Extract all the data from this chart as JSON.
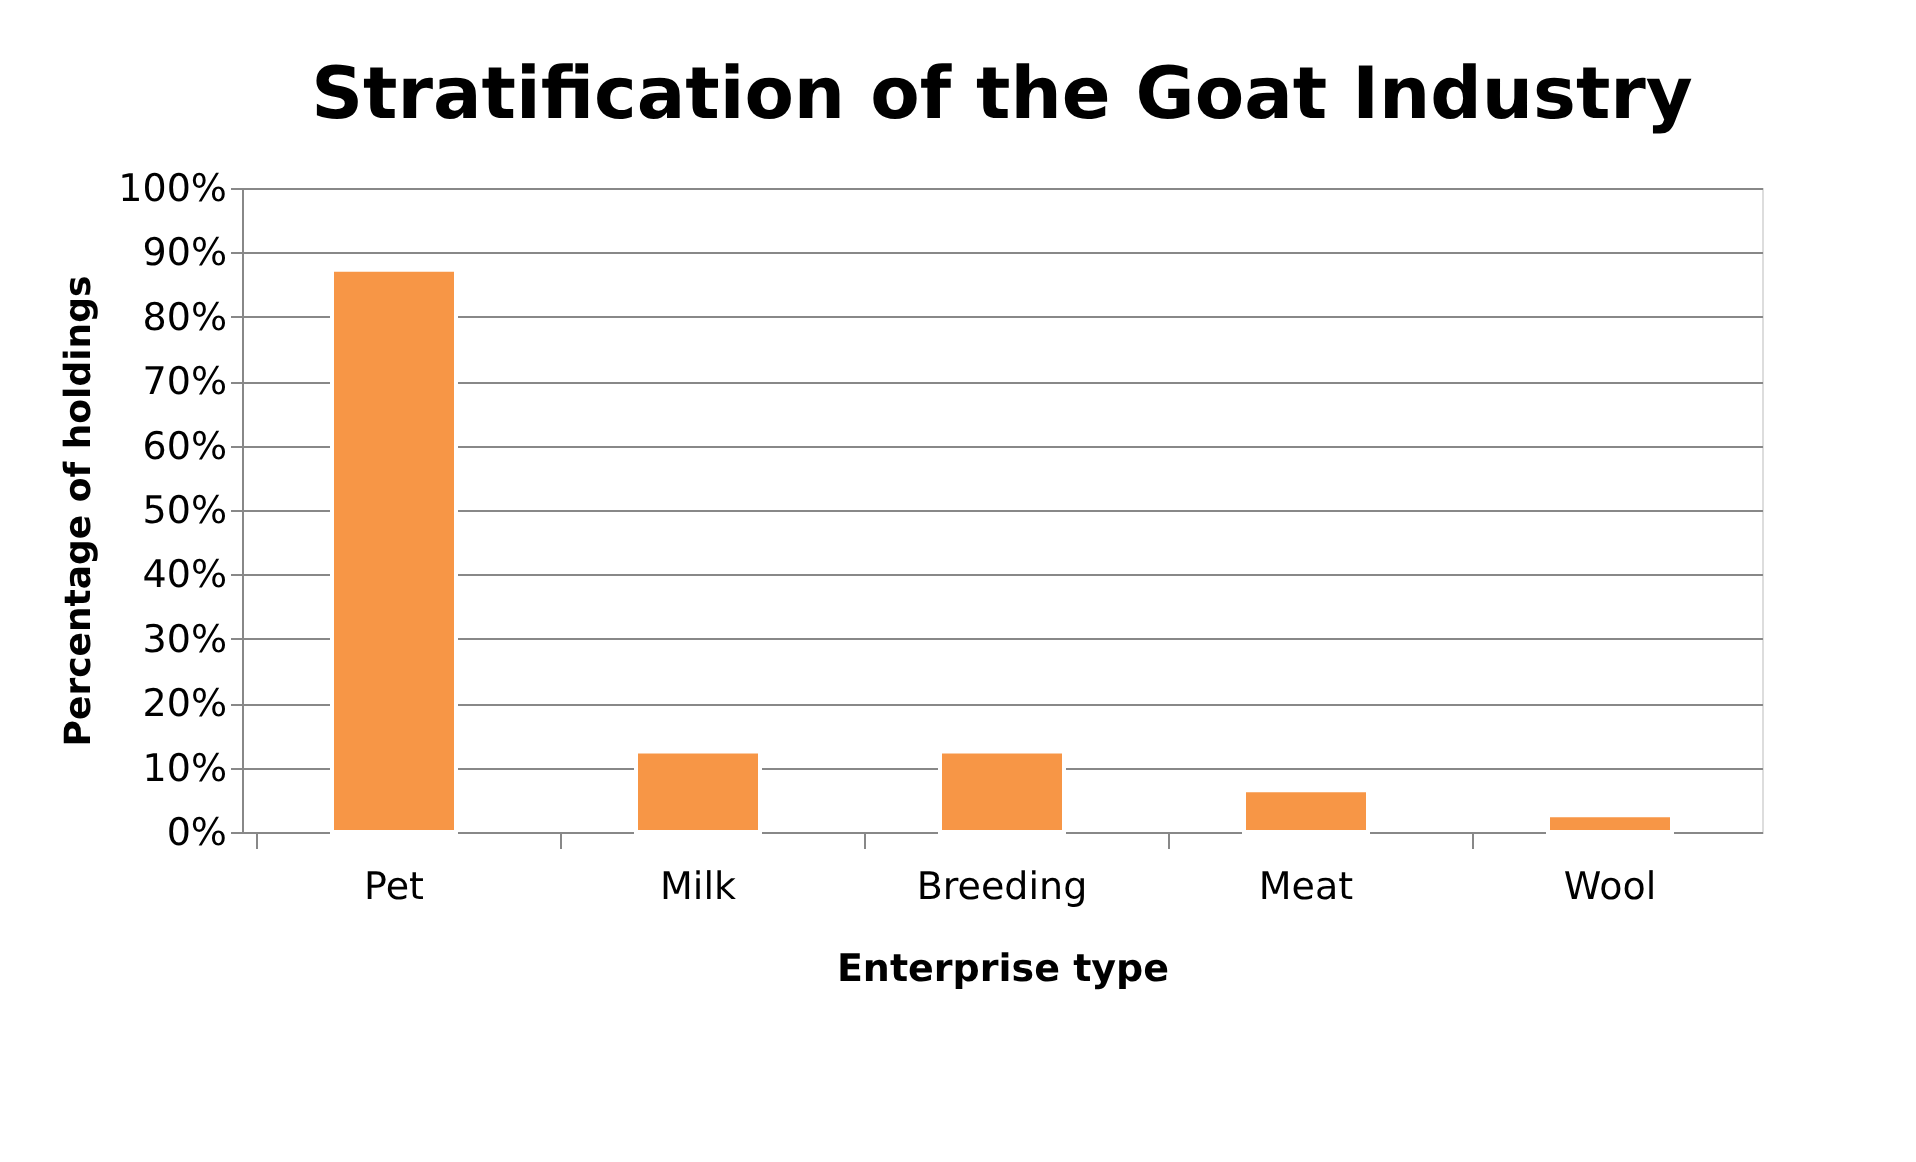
{
  "chart_data": {
    "type": "bar",
    "title": "Stratification of the Goat Industry",
    "xlabel": "Enterprise type",
    "ylabel": "Percentage of holdings",
    "categories": [
      "Pet",
      "Milk",
      "Breeding",
      "Meat",
      "Wool"
    ],
    "values": [
      87.3,
      12.5,
      12.5,
      6.5,
      2.6
    ],
    "color": "#f79646",
    "ylim": [
      0,
      100
    ],
    "yticks": [
      {
        "value": 0,
        "label": "0%"
      },
      {
        "value": 10,
        "label": "10%"
      },
      {
        "value": 20,
        "label": "20%"
      },
      {
        "value": 30,
        "label": "30%"
      },
      {
        "value": 40,
        "label": "40%"
      },
      {
        "value": 50,
        "label": "50%"
      },
      {
        "value": 60,
        "label": "60%"
      },
      {
        "value": 70,
        "label": "70%"
      },
      {
        "value": 80,
        "label": "80%"
      },
      {
        "value": 90,
        "label": "90%"
      },
      {
        "value": 100,
        "label": "100%"
      }
    ],
    "grid": "y"
  }
}
